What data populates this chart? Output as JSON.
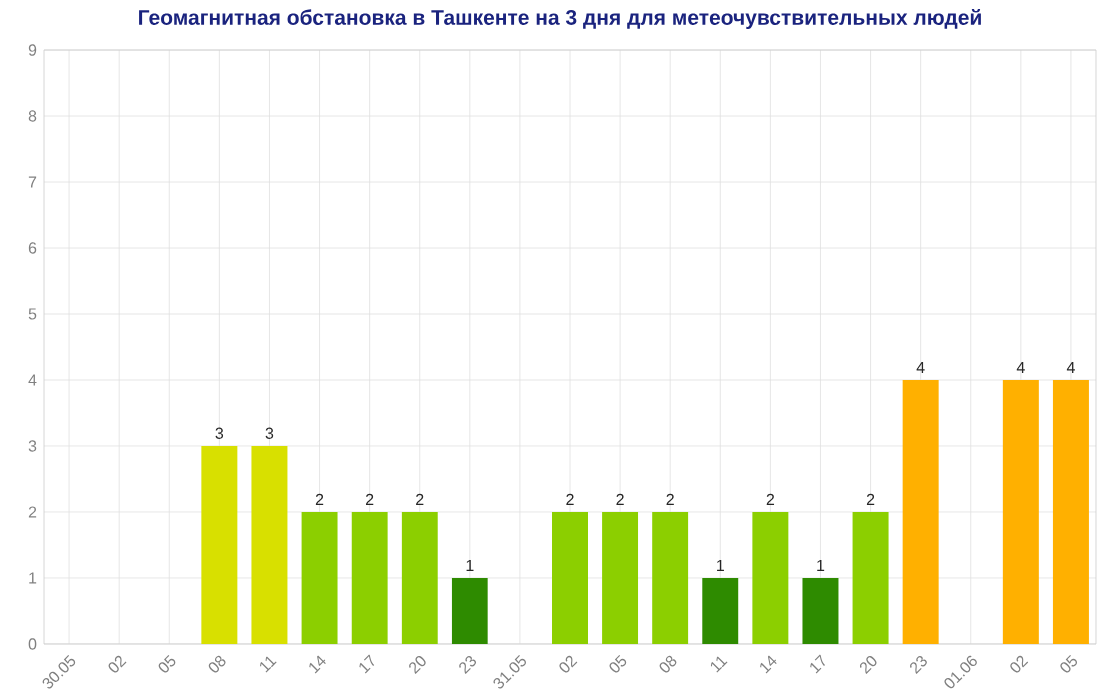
{
  "chart_data": {
    "type": "bar",
    "title": "Геомагнитная обстановка в Ташкенте на 3 дня для метеочувствительных людей",
    "categories": [
      "30.05",
      "02",
      "05",
      "08",
      "11",
      "14",
      "17",
      "20",
      "23",
      "31.05",
      "02",
      "05",
      "08",
      "11",
      "14",
      "17",
      "20",
      "23",
      "01.06",
      "02",
      "05"
    ],
    "values": [
      0,
      0,
      0,
      3,
      3,
      2,
      2,
      2,
      1,
      0,
      2,
      2,
      2,
      1,
      2,
      1,
      2,
      4,
      0,
      4,
      4
    ],
    "value_labels": [
      null,
      null,
      null,
      "3",
      "3",
      "2",
      "2",
      "2",
      "1",
      null,
      "2",
      "2",
      "2",
      "1",
      "2",
      "1",
      "2",
      "4",
      null,
      "4",
      "4"
    ],
    "colors": [
      "#2e8b00",
      "#2e8b00",
      "#2e8b00",
      "#d8e000",
      "#d8e000",
      "#8ccf00",
      "#8ccf00",
      "#8ccf00",
      "#2e8b00",
      "#2e8b00",
      "#8ccf00",
      "#8ccf00",
      "#8ccf00",
      "#2e8b00",
      "#8ccf00",
      "#2e8b00",
      "#8ccf00",
      "#ffb000",
      "#2e8b00",
      "#ffb000",
      "#ffb000"
    ],
    "ylim": [
      0,
      9
    ],
    "yticks": [
      0,
      1,
      2,
      3,
      4,
      5,
      6,
      7,
      8,
      9
    ],
    "grid": true
  }
}
